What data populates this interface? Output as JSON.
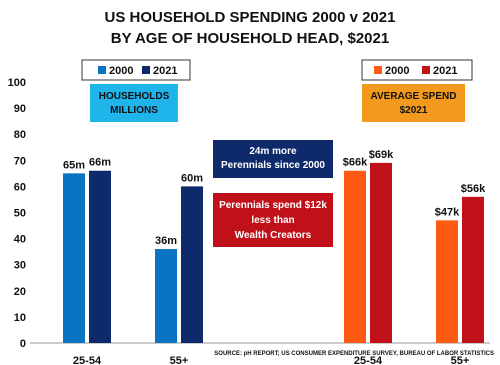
{
  "chart_data": {
    "title": [
      "US HOUSEHOLD SPENDING 2000 v 2021",
      "BY AGE OF HOUSEHOLD HEAD, $2021"
    ],
    "y_axis": {
      "ylim": [
        0,
        100
      ],
      "ticks": [
        "0",
        "10",
        "20",
        "30",
        "40",
        "50",
        "60",
        "70",
        "80",
        "90",
        "100"
      ]
    },
    "panels": [
      {
        "type": "bar",
        "label_lines": [
          "HOUSEHOLDS",
          "MILLIONS"
        ],
        "label_bg": "#1fb4ea",
        "categories": [
          "25-54",
          "55+"
        ],
        "series": [
          {
            "name": "2000",
            "color": "#0a73c2",
            "values": [
              65,
              36
            ],
            "labels": [
              "65m",
              "36m"
            ]
          },
          {
            "name": "2021",
            "color": "#0e2a6b",
            "values": [
              66,
              60
            ],
            "labels": [
              "66m",
              "60m"
            ]
          }
        ]
      },
      {
        "type": "bar",
        "label_lines": [
          "AVERAGE SPEND",
          "$2021"
        ],
        "label_bg": "#f39a1e",
        "categories": [
          "25-54",
          "55+"
        ],
        "series": [
          {
            "name": "2000",
            "color": "#ff5a14",
            "values": [
              66,
              47
            ],
            "labels": [
              "$66k",
              "$47k"
            ]
          },
          {
            "name": "2021",
            "color": "#c0111a",
            "values": [
              69,
              56
            ],
            "labels": [
              "$69k",
              "$56k"
            ]
          }
        ]
      }
    ],
    "annotations": [
      {
        "lines": [
          "24m more",
          "Perennials since 2000"
        ],
        "bg": "#0e2a6b"
      },
      {
        "lines": [
          "Perennials spend $12k",
          "less than",
          "Wealth Creators"
        ],
        "bg": "#c0111a"
      }
    ],
    "source": "SOURCE: pH REPORT; US CONSUMER EXPENDITURE SURVEY, BUREAU OF LABOR STATISTICS"
  }
}
